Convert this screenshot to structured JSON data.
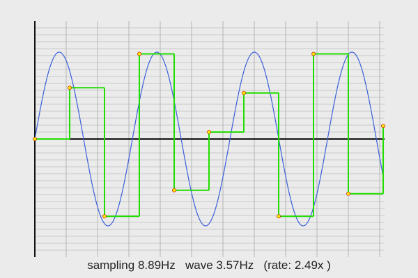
{
  "caption": "sampling 8.89Hz   wave 3.57Hz   (rate: 2.49x )",
  "chart_data": {
    "type": "line",
    "sampling_hz": 8.89,
    "wave_hz": 3.57,
    "rate": 2.49,
    "xlim": [
      0,
      1.0
    ],
    "ylim": [
      -1.4,
      1.4
    ],
    "grid": true,
    "series": [
      {
        "type": "line",
        "color": "#3a5fd9",
        "kind": "continuous-sine",
        "amplitude": 1.0,
        "frequency_hz": 3.57,
        "phase": 0
      },
      {
        "type": "step",
        "color": "#22dd00",
        "kind": "sample-and-hold",
        "x": [
          0.0,
          0.1,
          0.2,
          0.3,
          0.4,
          0.5,
          0.6,
          0.7,
          0.8,
          0.9,
          1.0
        ],
        "y": [
          0.0,
          0.59,
          -0.89,
          0.98,
          -0.59,
          0.08,
          0.53,
          -0.89,
          0.98,
          -0.63,
          0.15
        ]
      },
      {
        "type": "scatter",
        "color": "#ffee00",
        "kind": "sample-points",
        "x": [
          0.0,
          0.1,
          0.2,
          0.3,
          0.4,
          0.5,
          0.6,
          0.7,
          0.8,
          0.9,
          1.0
        ],
        "y": [
          0.0,
          0.59,
          -0.89,
          0.98,
          -0.59,
          0.08,
          0.53,
          -0.89,
          0.98,
          -0.63,
          0.15
        ]
      }
    ]
  }
}
